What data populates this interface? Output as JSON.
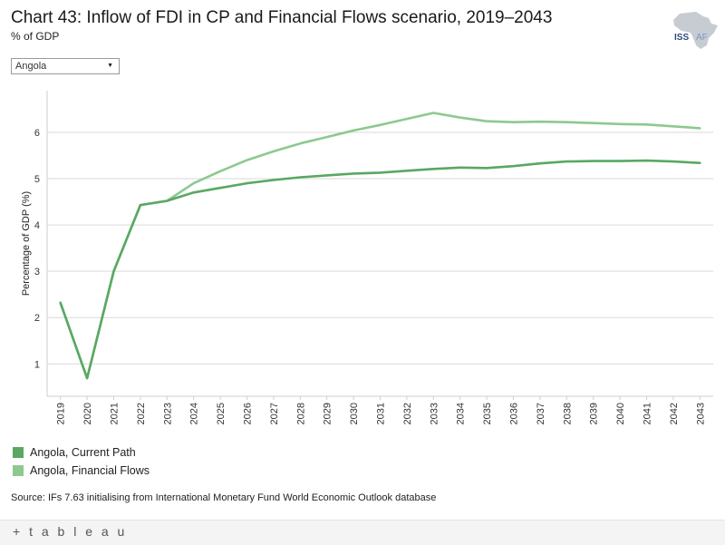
{
  "header": {
    "title": "Chart 43: Inflow of FDI in CP and Financial Flows scenario, 2019–2043",
    "subtitle": "% of GDP"
  },
  "logo": {
    "text": "ISS",
    "text2": "AF"
  },
  "filter": {
    "selected": "Angola"
  },
  "colors": {
    "current_path": "#59a862",
    "financial_flows": "#8dc98f",
    "grid": "#d9d9d9"
  },
  "chart_data": {
    "type": "line",
    "title": "Chart 43: Inflow of FDI in CP and Financial Flows scenario, 2019–2043",
    "ylabel": "Percentage of GDP (%)",
    "xlabel": "",
    "ylim": [
      0.3,
      6.9
    ],
    "yticks": [
      1,
      2,
      3,
      4,
      5,
      6
    ],
    "categories": [
      "2019",
      "2020",
      "2021",
      "2022",
      "2023",
      "2024",
      "2025",
      "2026",
      "2027",
      "2028",
      "2029",
      "2030",
      "2031",
      "2032",
      "2033",
      "2034",
      "2035",
      "2036",
      "2037",
      "2038",
      "2039",
      "2040",
      "2041",
      "2042",
      "2043"
    ],
    "series": [
      {
        "name": "Angola, Current Path",
        "values": [
          2.32,
          0.69,
          3.0,
          4.43,
          4.52,
          4.7,
          4.8,
          4.9,
          4.97,
          5.03,
          5.07,
          5.11,
          5.13,
          5.17,
          5.21,
          5.24,
          5.23,
          5.27,
          5.33,
          5.37,
          5.38,
          5.38,
          5.39,
          5.37,
          5.34
        ]
      },
      {
        "name": "Angola, Financial Flows",
        "values": [
          2.32,
          0.69,
          3.0,
          4.43,
          4.52,
          4.9,
          5.16,
          5.4,
          5.59,
          5.76,
          5.9,
          6.04,
          6.16,
          6.29,
          6.42,
          6.32,
          6.24,
          6.22,
          6.23,
          6.22,
          6.2,
          6.18,
          6.17,
          6.13,
          6.09
        ]
      }
    ]
  },
  "legend": [
    {
      "label": "Angola, Current Path"
    },
    {
      "label": "Angola, Financial Flows"
    }
  ],
  "source": "Source: IFs 7.63 initialising from International Monetary Fund World Economic Outlook database",
  "footer": {
    "brand": "+ t a b l e a u"
  }
}
